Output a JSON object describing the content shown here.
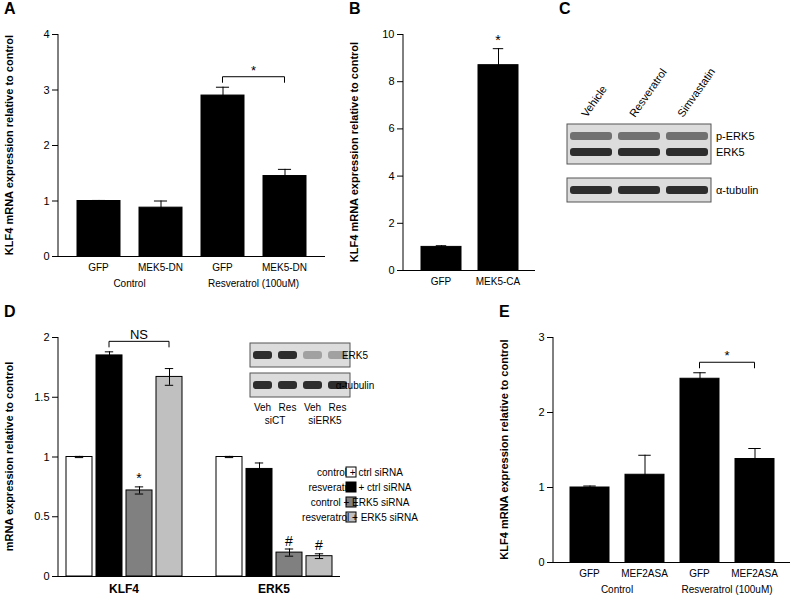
{
  "chart_data": [
    {
      "panel": "A",
      "type": "bar",
      "categories": [
        "GFP",
        "MEK5-DN",
        "GFP",
        "MEK5-DN"
      ],
      "groups": [
        "Control",
        "Control",
        "Resveratrol (100uM)",
        "Resveratrol (100uM)"
      ],
      "values": [
        1.0,
        0.88,
        2.9,
        1.45
      ],
      "errors": [
        0.01,
        0.12,
        0.15,
        0.12
      ],
      "color": "#000000",
      "ylabel": "KLF4 mRNA expression relative to control",
      "ylim": [
        0,
        4
      ],
      "yticks": [
        0,
        1,
        2,
        3,
        4
      ],
      "annotations": [
        {
          "text": "*",
          "between": [
            2,
            3
          ]
        }
      ]
    },
    {
      "panel": "B",
      "type": "bar",
      "categories": [
        "GFP",
        "MEK5-CA"
      ],
      "values": [
        1.0,
        8.7
      ],
      "errors": [
        0.05,
        0.7
      ],
      "color": "#000000",
      "ylabel": "KLF4 mRNA expression relative to control",
      "ylim": [
        0,
        10
      ],
      "yticks": [
        0,
        2,
        4,
        6,
        8,
        10
      ],
      "annotations": [
        {
          "text": "*",
          "at": 1
        }
      ]
    },
    {
      "panel": "C",
      "type": "blot",
      "lanes": [
        "Vehicle",
        "Resveratrol",
        "Simvastatin"
      ],
      "bands": [
        [
          "p-ERK5",
          "ERK5"
        ],
        [
          "α-tubulin"
        ]
      ]
    },
    {
      "panel": "D",
      "type": "bar",
      "categories": [
        "KLF4",
        "ERK5"
      ],
      "series": [
        {
          "name": "control + ctrl siRNA",
          "color": "#ffffff",
          "values": [
            1.0,
            1.0
          ],
          "errors": [
            0.005,
            0.005
          ]
        },
        {
          "name": "resveratrol + ctrl siRNA",
          "color": "#000000",
          "values": [
            1.85,
            0.9
          ],
          "errors": [
            0.03,
            0.05
          ]
        },
        {
          "name": "control + ERK5 siRNA",
          "color": "#808080",
          "values": [
            0.72,
            0.2
          ],
          "errors": [
            0.03,
            0.03
          ]
        },
        {
          "name": "resveratrol + ERK5 siRNA",
          "color": "#c0c0c0",
          "values": [
            1.67,
            0.17
          ],
          "errors": [
            0.07,
            0.02
          ]
        }
      ],
      "ylabel": "mRNA expression relative to control",
      "ylim": [
        0,
        2
      ],
      "yticks": [
        0,
        0.5,
        1,
        1.5,
        2
      ],
      "legend": "upper right",
      "annotations": [
        {
          "text": "NS",
          "between": [
            [
              0,
              1
            ],
            [
              0,
              3
            ]
          ]
        },
        {
          "text": "*",
          "at": [
            0,
            2
          ]
        },
        {
          "text": "#",
          "at": [
            1,
            2
          ]
        },
        {
          "text": "#",
          "at": [
            1,
            3
          ]
        }
      ],
      "inset": {
        "type": "blot",
        "lanes": [
          "Veh",
          "Res",
          "Veh",
          "Res"
        ],
        "lane_groups": [
          "siCT",
          "siCT",
          "siERK5",
          "siERK5"
        ],
        "bands": [
          [
            "ERK5"
          ],
          [
            "α-tubulin"
          ]
        ]
      }
    },
    {
      "panel": "E",
      "type": "bar",
      "categories": [
        "GFP",
        "MEF2ASA",
        "GFP",
        "MEF2ASA"
      ],
      "groups": [
        "Control",
        "Control",
        "Resveratrol (100uM)",
        "Resveratrol (100uM)"
      ],
      "values": [
        1.0,
        1.17,
        2.45,
        1.38
      ],
      "errors": [
        0.02,
        0.26,
        0.08,
        0.14
      ],
      "color": "#000000",
      "ylabel": "KLF4 mRNA expression relative to control",
      "ylim": [
        0,
        3
      ],
      "yticks": [
        0,
        1,
        2,
        3
      ],
      "annotations": [
        {
          "text": "*",
          "between": [
            2,
            3
          ]
        }
      ]
    }
  ]
}
